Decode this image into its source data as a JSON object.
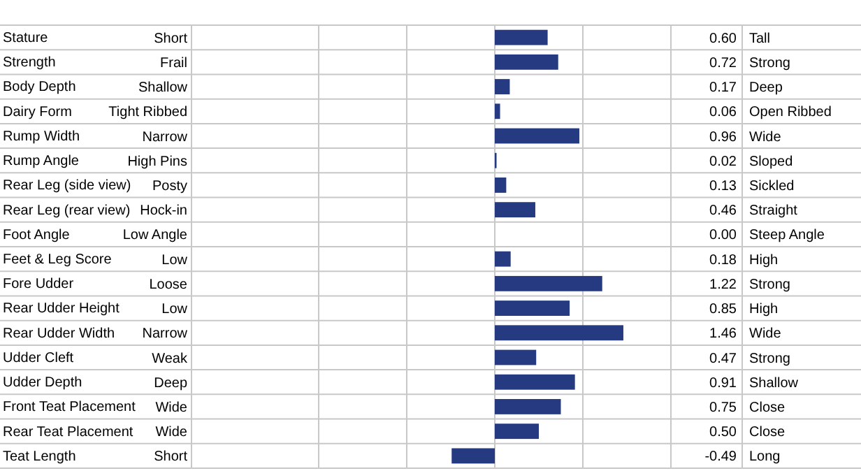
{
  "chart_data": {
    "type": "bar",
    "orientation": "horizontal",
    "categories": [
      "Stature",
      "Strength",
      "Body Depth",
      "Dairy Form",
      "Rump Width",
      "Rump Angle",
      "Rear Leg (side view)",
      "Rear Leg (rear view)",
      "Foot Angle",
      "Feet & Leg Score",
      "Fore Udder",
      "Rear Udder Height",
      "Rear Udder Width",
      "Udder Cleft",
      "Udder Depth",
      "Front Teat Placement",
      "Rear Teat Placement",
      "Teat Length"
    ],
    "values": [
      0.6,
      0.72,
      0.17,
      0.06,
      0.96,
      0.02,
      0.13,
      0.46,
      0.0,
      0.18,
      1.22,
      0.85,
      1.46,
      0.47,
      0.91,
      0.75,
      0.5,
      -0.49
    ],
    "value_labels": [
      "0.60",
      "0.72",
      "0.17",
      "0.06",
      "0.96",
      "0.02",
      "0.13",
      "0.46",
      "0.00",
      "0.18",
      "1.22",
      "0.85",
      "1.46",
      "0.47",
      "0.91",
      "0.75",
      "0.50",
      "-0.49"
    ],
    "color": "#253a80",
    "xlim": [
      -2,
      2
    ],
    "xticks": [
      {
        "value": -2,
        "label": null
      },
      {
        "value": -1,
        "label": null
      },
      {
        "value": 0,
        "label": null
      },
      {
        "value": 1,
        "label": null
      },
      {
        "value": 2,
        "label": null
      }
    ],
    "tick_labels": "y",
    "grid": true,
    "annotations": [
      "Short",
      "Frail",
      "Shallow",
      "Tight Ribbed",
      "Narrow",
      "High Pins",
      "Posty",
      "Hock-in",
      "Low Angle",
      "Low",
      "Loose",
      "Low",
      "Narrow",
      "Weak",
      "Deep",
      "Wide",
      "Wide",
      "Short",
      "Tall",
      "Strong",
      "Deep",
      "Open Ribbed",
      "Wide",
      "Sloped",
      "Sickled",
      "Straight",
      "Steep Angle",
      "High",
      "Strong",
      "High",
      "Wide",
      "Strong",
      "Shallow",
      "Close",
      "Close",
      "Long"
    ]
  }
}
